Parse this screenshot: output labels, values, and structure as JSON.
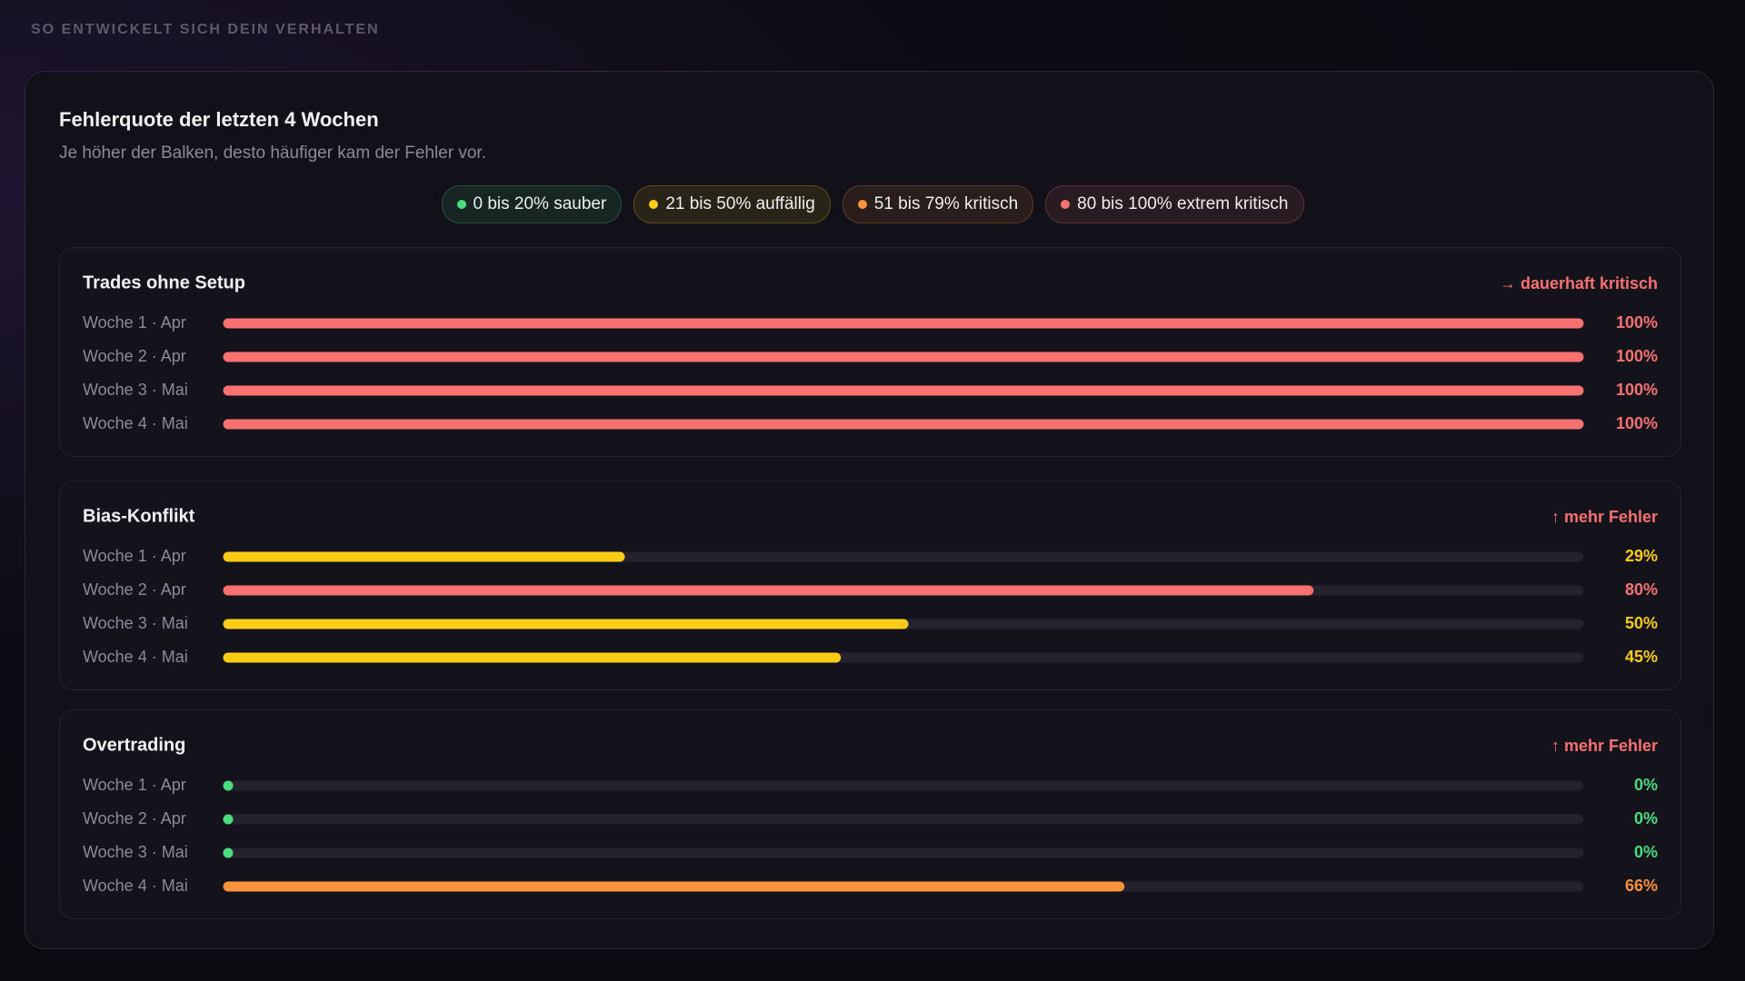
{
  "header": "SO ENTWICKELT SICH DEIN VERHALTEN",
  "card": {
    "title": "Fehlerquote der letzten 4 Wochen",
    "subtitle": "Je höher der Balken, desto häufiger kam der Fehler vor."
  },
  "legend": [
    {
      "label": "0 bis 20% sauber",
      "color": "#4ade80"
    },
    {
      "label": "21 bis 50% auffällig",
      "color": "#facc15"
    },
    {
      "label": "51 bis 79% kritisch",
      "color": "#fb923c"
    },
    {
      "label": "80 bis 100% extrem kritisch",
      "color": "#f87171"
    }
  ],
  "chart_data": [
    {
      "type": "bar",
      "title": "Trades ohne Setup",
      "annotation": "→ dauerhaft kritisch",
      "annotation_color": "#f87171",
      "categories": [
        "Woche 1 · Apr",
        "Woche 2 · Apr",
        "Woche 3 · Mai",
        "Woche 4 · Mai"
      ],
      "values": [
        100,
        100,
        100,
        100
      ],
      "value_labels": [
        "100%",
        "100%",
        "100%",
        "100%"
      ],
      "colors": [
        "#f87171",
        "#f87171",
        "#f87171",
        "#f87171"
      ],
      "xlim": [
        0,
        100
      ]
    },
    {
      "type": "bar",
      "title": "Bias-Konflikt",
      "annotation": "↑ mehr Fehler",
      "annotation_color": "#f87171",
      "categories": [
        "Woche 1 · Apr",
        "Woche 2 · Apr",
        "Woche 3 · Mai",
        "Woche 4 · Mai"
      ],
      "values": [
        29,
        80,
        50,
        45
      ],
      "value_labels": [
        "29%",
        "80%",
        "50%",
        "45%"
      ],
      "colors": [
        "#facc15",
        "#f87171",
        "#facc15",
        "#facc15"
      ],
      "xlim": [
        0,
        100
      ]
    },
    {
      "type": "bar",
      "title": "Overtrading",
      "annotation": "↑ mehr Fehler",
      "annotation_color": "#f87171",
      "categories": [
        "Woche 1 · Apr",
        "Woche 2 · Apr",
        "Woche 3 · Mai",
        "Woche 4 · Mai"
      ],
      "values": [
        0,
        0,
        0,
        66
      ],
      "value_labels": [
        "0%",
        "0%",
        "0%",
        "66%"
      ],
      "colors": [
        "#4ade80",
        "#4ade80",
        "#4ade80",
        "#fb923c"
      ],
      "xlim": [
        0,
        100
      ]
    }
  ]
}
